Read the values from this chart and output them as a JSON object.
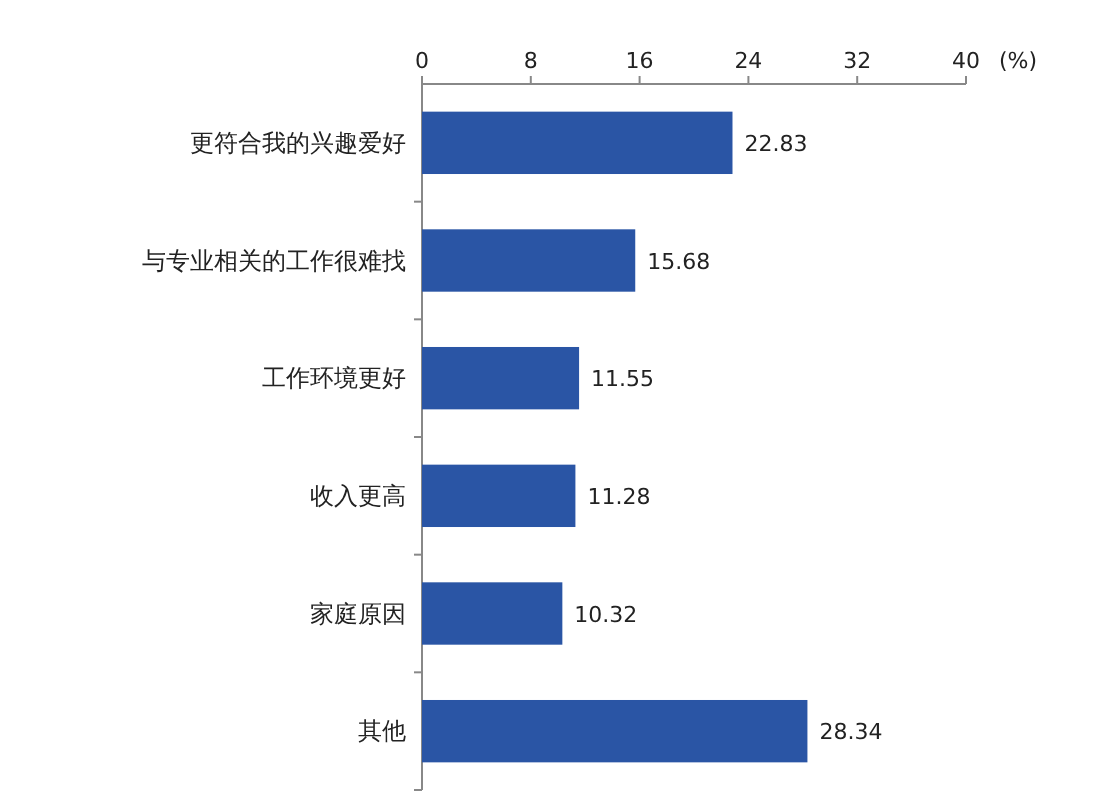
{
  "chart_data": {
    "type": "bar",
    "orientation": "horizontal",
    "xlabel": "(%)",
    "categories": [
      "更符合我的兴趣爱好",
      "与专业相关的工作很难找",
      "工作环境更好",
      "收入更高",
      "家庭原因",
      "其他"
    ],
    "values": [
      22.83,
      15.68,
      11.55,
      11.28,
      10.32,
      28.34
    ],
    "color": "#2a55a5",
    "xlim": [
      0,
      40
    ],
    "xticks": [
      0,
      8,
      16,
      24,
      32,
      40
    ],
    "data_labels": true
  }
}
